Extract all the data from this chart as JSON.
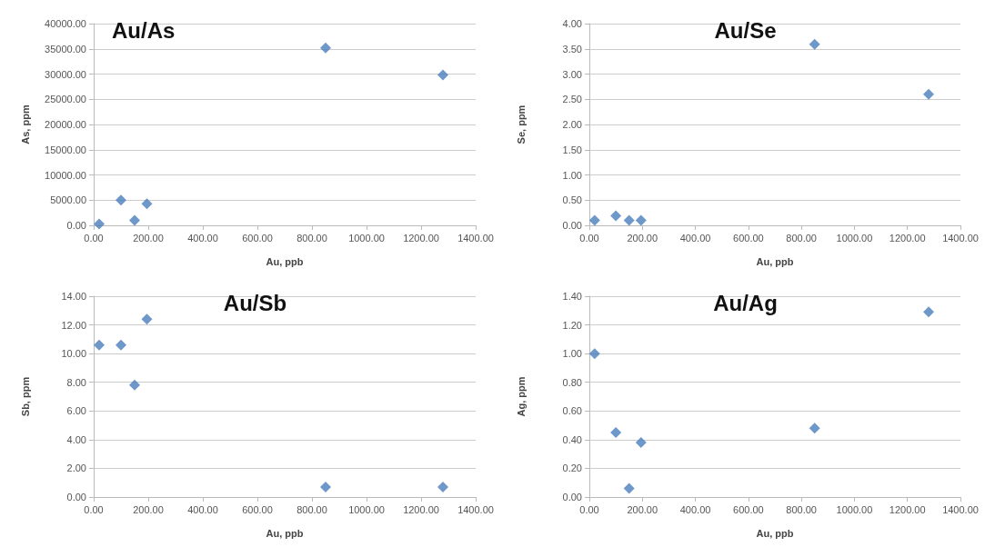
{
  "chart_data": [
    {
      "type": "scatter",
      "title": "Au/As",
      "xlabel": "Au, ppb",
      "ylabel": "As, ppm",
      "x": [
        20,
        100,
        150,
        195,
        850,
        1280
      ],
      "series": [
        {
          "color": "#4a7ebb",
          "values": [
            250,
            5000,
            1000,
            4300,
            35200,
            29800
          ]
        }
      ],
      "marker": "diamond",
      "grid": "y",
      "xlim": [
        0,
        1400
      ],
      "xticks": [
        {
          "value": 0,
          "label": "0.00"
        },
        {
          "value": 200,
          "label": "200.00"
        },
        {
          "value": 400,
          "label": "400.00"
        },
        {
          "value": 600,
          "label": "600.00"
        },
        {
          "value": 800,
          "label": "800.00"
        },
        {
          "value": 1000,
          "label": "1000.00"
        },
        {
          "value": 1200,
          "label": "1200.00"
        },
        {
          "value": 1400,
          "label": "1400.00"
        }
      ],
      "ylim": [
        0,
        40000
      ],
      "yticks": [
        {
          "value": 0,
          "label": "0.00"
        },
        {
          "value": 5000,
          "label": "5000.00"
        },
        {
          "value": 10000,
          "label": "10000.00"
        },
        {
          "value": 15000,
          "label": "15000.00"
        },
        {
          "value": 20000,
          "label": "20000.00"
        },
        {
          "value": 25000,
          "label": "25000.00"
        },
        {
          "value": 30000,
          "label": "30000.00"
        },
        {
          "value": 35000,
          "label": "35000.00"
        },
        {
          "value": 40000,
          "label": "40000.00"
        }
      ]
    },
    {
      "type": "scatter",
      "title": "Au/Se",
      "xlabel": "Au, ppb",
      "ylabel": "Se, ppm",
      "x": [
        20,
        100,
        150,
        195,
        850,
        1280
      ],
      "series": [
        {
          "color": "#4a7ebb",
          "values": [
            0.1,
            0.19,
            0.1,
            0.1,
            3.59,
            2.6
          ]
        }
      ],
      "marker": "diamond",
      "grid": "y",
      "xlim": [
        0,
        1400
      ],
      "xticks": [
        {
          "value": 0,
          "label": "0.00"
        },
        {
          "value": 200,
          "label": "200.00"
        },
        {
          "value": 400,
          "label": "400.00"
        },
        {
          "value": 600,
          "label": "600.00"
        },
        {
          "value": 800,
          "label": "800.00"
        },
        {
          "value": 1000,
          "label": "1000.00"
        },
        {
          "value": 1200,
          "label": "1200.00"
        },
        {
          "value": 1400,
          "label": "1400.00"
        }
      ],
      "ylim": [
        0,
        4
      ],
      "yticks": [
        {
          "value": 0,
          "label": "0.00"
        },
        {
          "value": 0.5,
          "label": "0.50"
        },
        {
          "value": 1,
          "label": "1.00"
        },
        {
          "value": 1.5,
          "label": "1.50"
        },
        {
          "value": 2,
          "label": "2.00"
        },
        {
          "value": 2.5,
          "label": "2.50"
        },
        {
          "value": 3,
          "label": "3.00"
        },
        {
          "value": 3.5,
          "label": "3.50"
        },
        {
          "value": 4,
          "label": "4.00"
        }
      ]
    },
    {
      "type": "scatter",
      "title": "Au/Sb",
      "xlabel": "Au, ppb",
      "ylabel": "Sb, ppm",
      "x": [
        20,
        100,
        150,
        195,
        850,
        1280
      ],
      "series": [
        {
          "color": "#4a7ebb",
          "values": [
            10.6,
            10.6,
            7.8,
            12.4,
            0.7,
            0.7
          ]
        }
      ],
      "marker": "diamond",
      "grid": "y",
      "xlim": [
        0,
        1400
      ],
      "xticks": [
        {
          "value": 0,
          "label": "0.00"
        },
        {
          "value": 200,
          "label": "200.00"
        },
        {
          "value": 400,
          "label": "400.00"
        },
        {
          "value": 600,
          "label": "600.00"
        },
        {
          "value": 800,
          "label": "800.00"
        },
        {
          "value": 1000,
          "label": "1000.00"
        },
        {
          "value": 1200,
          "label": "1200.00"
        },
        {
          "value": 1400,
          "label": "1400.00"
        }
      ],
      "ylim": [
        0,
        14
      ],
      "yticks": [
        {
          "value": 0,
          "label": "0.00"
        },
        {
          "value": 2,
          "label": "2.00"
        },
        {
          "value": 4,
          "label": "4.00"
        },
        {
          "value": 6,
          "label": "6.00"
        },
        {
          "value": 8,
          "label": "8.00"
        },
        {
          "value": 10,
          "label": "10.00"
        },
        {
          "value": 12,
          "label": "12.00"
        },
        {
          "value": 14,
          "label": "14.00"
        }
      ]
    },
    {
      "type": "scatter",
      "title": "Au/Ag",
      "xlabel": "Au, ppb",
      "ylabel": "Ag, ppm",
      "x": [
        20,
        100,
        150,
        195,
        850,
        1280
      ],
      "series": [
        {
          "color": "#4a7ebb",
          "values": [
            1.0,
            0.45,
            0.06,
            0.38,
            0.48,
            1.29
          ]
        }
      ],
      "marker": "diamond",
      "grid": "y",
      "xlim": [
        0,
        1400
      ],
      "xticks": [
        {
          "value": 0,
          "label": "0.00"
        },
        {
          "value": 200,
          "label": "200.00"
        },
        {
          "value": 400,
          "label": "400.00"
        },
        {
          "value": 600,
          "label": "600.00"
        },
        {
          "value": 800,
          "label": "800.00"
        },
        {
          "value": 1000,
          "label": "1000.00"
        },
        {
          "value": 1200,
          "label": "1200.00"
        },
        {
          "value": 1400,
          "label": "1400.00"
        }
      ],
      "ylim": [
        0,
        1.4
      ],
      "yticks": [
        {
          "value": 0,
          "label": "0.00"
        },
        {
          "value": 0.2,
          "label": "0.20"
        },
        {
          "value": 0.4,
          "label": "0.40"
        },
        {
          "value": 0.6,
          "label": "0.60"
        },
        {
          "value": 0.8,
          "label": "0.80"
        },
        {
          "value": 1,
          "label": "1.00"
        },
        {
          "value": 1.2,
          "label": "1.20"
        },
        {
          "value": 1.4,
          "label": "1.40"
        }
      ]
    }
  ]
}
